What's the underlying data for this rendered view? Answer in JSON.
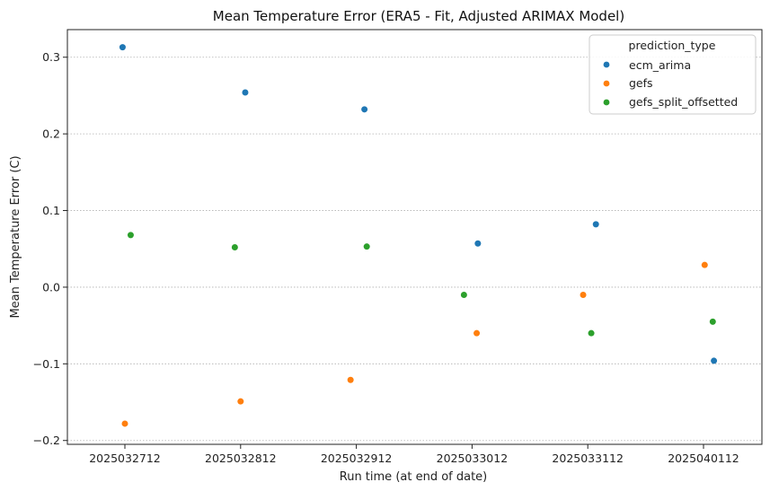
{
  "chart_data": {
    "type": "scatter",
    "title": "Mean Temperature Error (ERA5 - Fit, Adjusted ARIMAX Model)",
    "xlabel": "Run time (at end of date)",
    "ylabel": "Mean Temperature Error (C)",
    "categories": [
      "2025032712",
      "2025032812",
      "2025032912",
      "2025033012",
      "2025033112",
      "2025040112"
    ],
    "ylim": [
      -0.205,
      0.336
    ],
    "yticks": [
      -0.2,
      -0.1,
      0.0,
      0.1,
      0.2,
      0.3
    ],
    "ytick_labels": [
      "−0.2",
      "−0.1",
      "0.0",
      "0.1",
      "0.2",
      "0.3"
    ],
    "grid": "horizontal-dotted",
    "legend": {
      "title": "prediction_type",
      "placement": "top-right"
    },
    "series": [
      {
        "name": "ecm_arima",
        "color": "#1f77b4",
        "offsets": [
          -0.02,
          0.04,
          0.07,
          0.05,
          0.07,
          0.09
        ],
        "values": [
          0.313,
          0.254,
          0.232,
          0.057,
          0.082,
          -0.096
        ]
      },
      {
        "name": "gefs",
        "color": "#ff7f0e",
        "offsets": [
          0.0,
          0.0,
          -0.05,
          0.04,
          -0.04,
          0.01
        ],
        "values": [
          -0.178,
          -0.149,
          -0.121,
          -0.06,
          -0.01,
          0.029
        ]
      },
      {
        "name": "gefs_split_offsetted",
        "color": "#2ca02c",
        "offsets": [
          0.05,
          -0.05,
          0.09,
          -0.07,
          0.03,
          0.08
        ],
        "values": [
          0.068,
          0.052,
          0.053,
          -0.01,
          -0.06,
          -0.045
        ]
      }
    ]
  }
}
